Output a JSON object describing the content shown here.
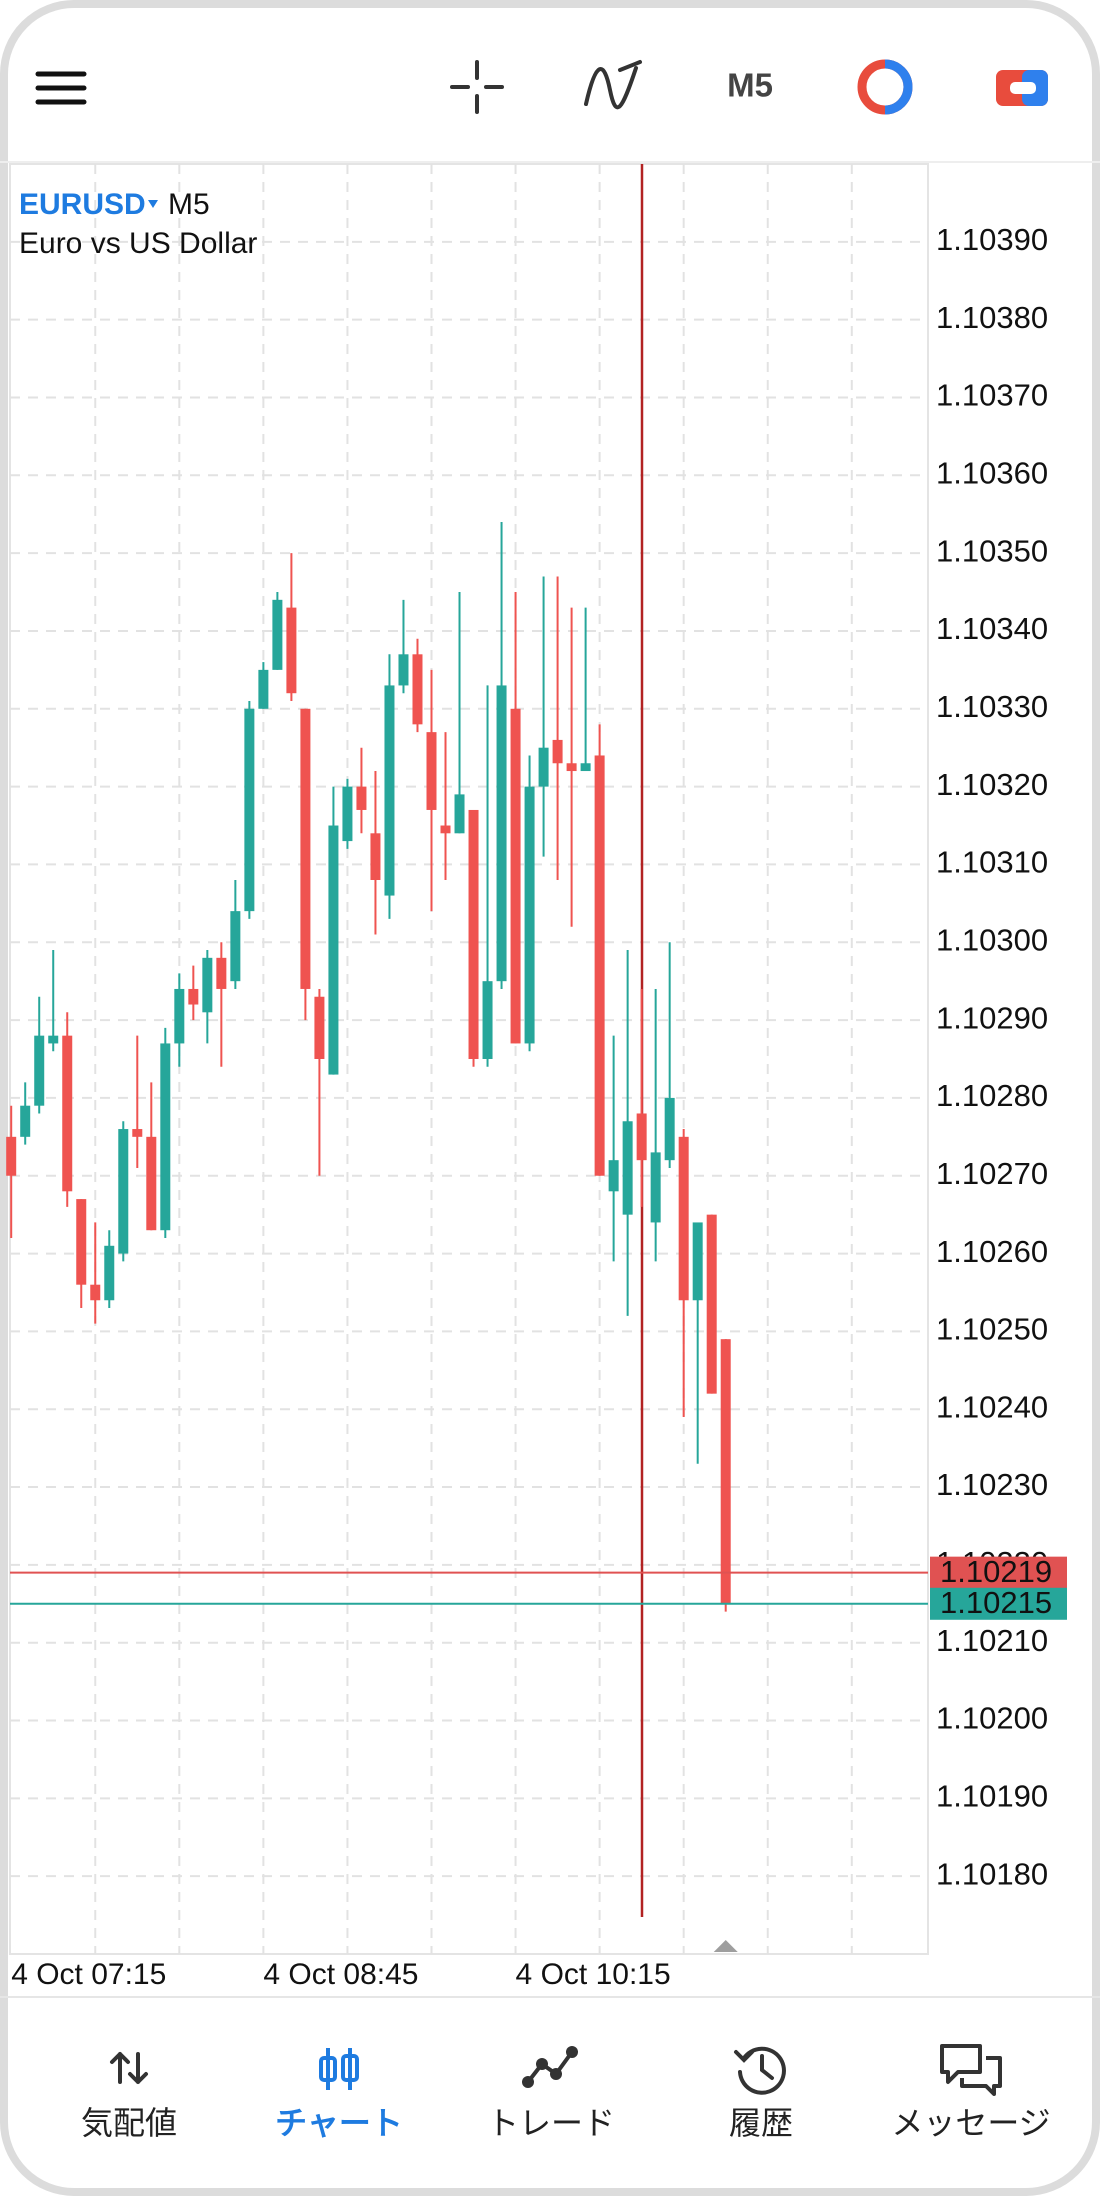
{
  "top_bar": {
    "timeframe": "M5"
  },
  "chart_data": {
    "type": "candlestick",
    "symbol": "EURUSD",
    "timeframe": "M5",
    "description": "Euro vs US Dollar",
    "categories": [
      "4 Oct 07:15",
      null,
      null,
      null,
      null,
      null,
      null,
      null,
      null,
      null,
      null,
      null,
      null,
      null,
      null,
      null,
      null,
      null,
      "4 Oct 08:45",
      null,
      null,
      null,
      null,
      null,
      null,
      null,
      null,
      null,
      null,
      null,
      null,
      null,
      null,
      null,
      null,
      null,
      "4 Oct 10:15",
      null,
      null,
      null,
      null,
      null,
      null,
      null,
      null,
      null,
      null,
      null,
      null,
      null,
      null,
      null
    ],
    "open": [
      1.10275,
      1.10275,
      1.10279,
      1.10287,
      1.10288,
      1.10267,
      1.10256,
      1.10254,
      1.1026,
      1.10276,
      1.10275,
      1.10263,
      1.10287,
      1.10294,
      1.10291,
      1.10298,
      1.10295,
      1.10304,
      1.1033,
      1.10335,
      1.10343,
      1.1033,
      1.10293,
      1.10283,
      1.10313,
      1.1032,
      1.10314,
      1.10306,
      1.10333,
      1.10337,
      1.10327,
      1.10315,
      1.10314,
      1.10317,
      1.10285,
      1.10295,
      1.1033,
      1.10287,
      1.1032,
      1.10326,
      1.10323,
      1.10322,
      1.10324,
      1.10268,
      1.10265,
      1.10278,
      1.10264,
      1.10272,
      1.10275,
      1.10254,
      1.10265,
      1.10249
    ],
    "high": [
      1.10279,
      1.10282,
      1.10293,
      1.10299,
      1.10291,
      1.10267,
      1.10264,
      1.10263,
      1.10277,
      1.10288,
      1.10282,
      1.10289,
      1.10296,
      1.10297,
      1.10299,
      1.103,
      1.10308,
      1.10331,
      1.10336,
      1.10345,
      1.1035,
      1.1033,
      1.10294,
      1.1032,
      1.10321,
      1.10325,
      1.10322,
      1.10337,
      1.10344,
      1.10339,
      1.10335,
      1.10327,
      1.10345,
      1.10317,
      1.10333,
      1.10354,
      1.10345,
      1.10324,
      1.10347,
      1.10347,
      1.10343,
      1.10343,
      1.10328,
      1.10288,
      1.10299,
      1.10294,
      1.10294,
      1.103,
      1.10276,
      1.10263,
      1.10265,
      1.10249
    ],
    "low": [
      1.10262,
      1.10274,
      1.10278,
      1.10286,
      1.10266,
      1.10253,
      1.10251,
      1.10253,
      1.10259,
      1.10271,
      1.10263,
      1.10262,
      1.10284,
      1.1029,
      1.10287,
      1.10284,
      1.10294,
      1.10303,
      1.1033,
      1.10335,
      1.10331,
      1.1029,
      1.1027,
      1.10283,
      1.10312,
      1.10314,
      1.10301,
      1.10303,
      1.10332,
      1.10327,
      1.10304,
      1.10308,
      1.10314,
      1.10284,
      1.10284,
      1.10294,
      1.10287,
      1.10286,
      1.10311,
      1.10308,
      1.10302,
      1.10322,
      1.1027,
      1.10259,
      1.10252,
      1.10266,
      1.10259,
      1.10271,
      1.10239,
      1.10233,
      1.10242,
      1.10214
    ],
    "close": [
      1.1027,
      1.10279,
      1.10288,
      1.10288,
      1.10268,
      1.10256,
      1.10254,
      1.10261,
      1.10276,
      1.10275,
      1.10263,
      1.10287,
      1.10294,
      1.10292,
      1.10298,
      1.10294,
      1.10304,
      1.1033,
      1.10335,
      1.10344,
      1.10332,
      1.10294,
      1.10285,
      1.10315,
      1.1032,
      1.10317,
      1.10308,
      1.10333,
      1.10337,
      1.10328,
      1.10317,
      1.10314,
      1.10319,
      1.10285,
      1.10295,
      1.10333,
      1.10287,
      1.1032,
      1.10325,
      1.10323,
      1.10322,
      1.10323,
      1.1027,
      1.10272,
      1.10277,
      1.10272,
      1.10273,
      1.1028,
      1.10254,
      1.10264,
      1.10242,
      1.10215
    ],
    "up_color": "#26a69a",
    "down_color": "#ef5350",
    "ylim": [
      1.1017,
      1.104
    ],
    "yticks": [
      {
        "value": 1.1018,
        "label": "1.10180"
      },
      {
        "value": 1.1019,
        "label": "1.10190"
      },
      {
        "value": 1.102,
        "label": "1.10200"
      },
      {
        "value": 1.1021,
        "label": "1.10210"
      },
      {
        "value": 1.1022,
        "label": "1.10220"
      },
      {
        "value": 1.1023,
        "label": "1.10230"
      },
      {
        "value": 1.1024,
        "label": "1.10240"
      },
      {
        "value": 1.1025,
        "label": "1.10250"
      },
      {
        "value": 1.1026,
        "label": "1.10260"
      },
      {
        "value": 1.1027,
        "label": "1.10270"
      },
      {
        "value": 1.1028,
        "label": "1.10280"
      },
      {
        "value": 1.1029,
        "label": "1.10290"
      },
      {
        "value": 1.103,
        "label": "1.10300"
      },
      {
        "value": 1.1031,
        "label": "1.10310"
      },
      {
        "value": 1.1032,
        "label": "1.10320"
      },
      {
        "value": 1.1033,
        "label": "1.10330"
      },
      {
        "value": 1.1034,
        "label": "1.10340"
      },
      {
        "value": 1.1035,
        "label": "1.10350"
      },
      {
        "value": 1.1036,
        "label": "1.10360"
      },
      {
        "value": 1.1037,
        "label": "1.10370"
      },
      {
        "value": 1.1038,
        "label": "1.10380"
      },
      {
        "value": 1.1039,
        "label": "1.10390"
      }
    ],
    "grid": true,
    "price_lines": [
      {
        "value": 1.10219,
        "color": "#e05252"
      },
      {
        "value": 1.10215,
        "color": "#26a69a"
      }
    ]
  },
  "bottom_nav": {
    "items": [
      "気配値",
      "チャート",
      "トレード",
      "履歴",
      "メッセージ"
    ]
  }
}
